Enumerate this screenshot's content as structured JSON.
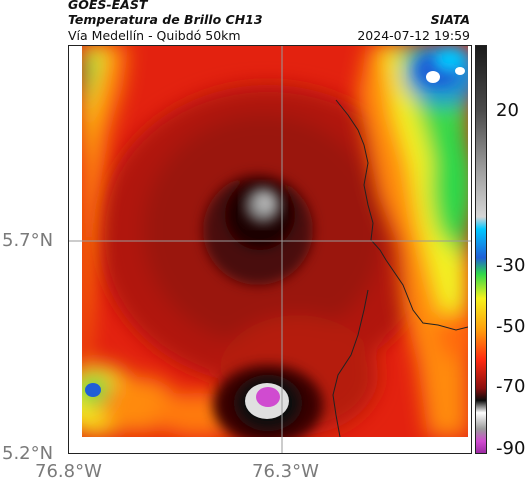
{
  "header": {
    "satellite": "GOES-EAST",
    "product": "Temperatura de Brillo CH13",
    "organization": "SIATA",
    "region": "Vía Medellín - Quibdó 50km",
    "timestamp": "2024-07-12 19:59"
  },
  "axes": {
    "lat_ticks": [
      "5.7°N",
      "5.2°N"
    ],
    "lon_ticks": [
      "76.8°W",
      "76.3°W"
    ]
  },
  "colorbar": {
    "tick_labels": [
      "20",
      "-30",
      "-50",
      "-70",
      "-90"
    ],
    "colors": {
      "warm": "#1a1a1a",
      "cyan": "#00c8ff",
      "blue": "#1f5fd6",
      "green": "#2fd84a",
      "yellow": "#f5f21d",
      "orange": "#ff9a0c",
      "red": "#ff2a10",
      "dark_red": "#8a0f0f",
      "black": "#0b0b0b",
      "magenta": "#d04bd0"
    }
  },
  "map": {
    "description_icon": "brightness-temperature-map"
  }
}
